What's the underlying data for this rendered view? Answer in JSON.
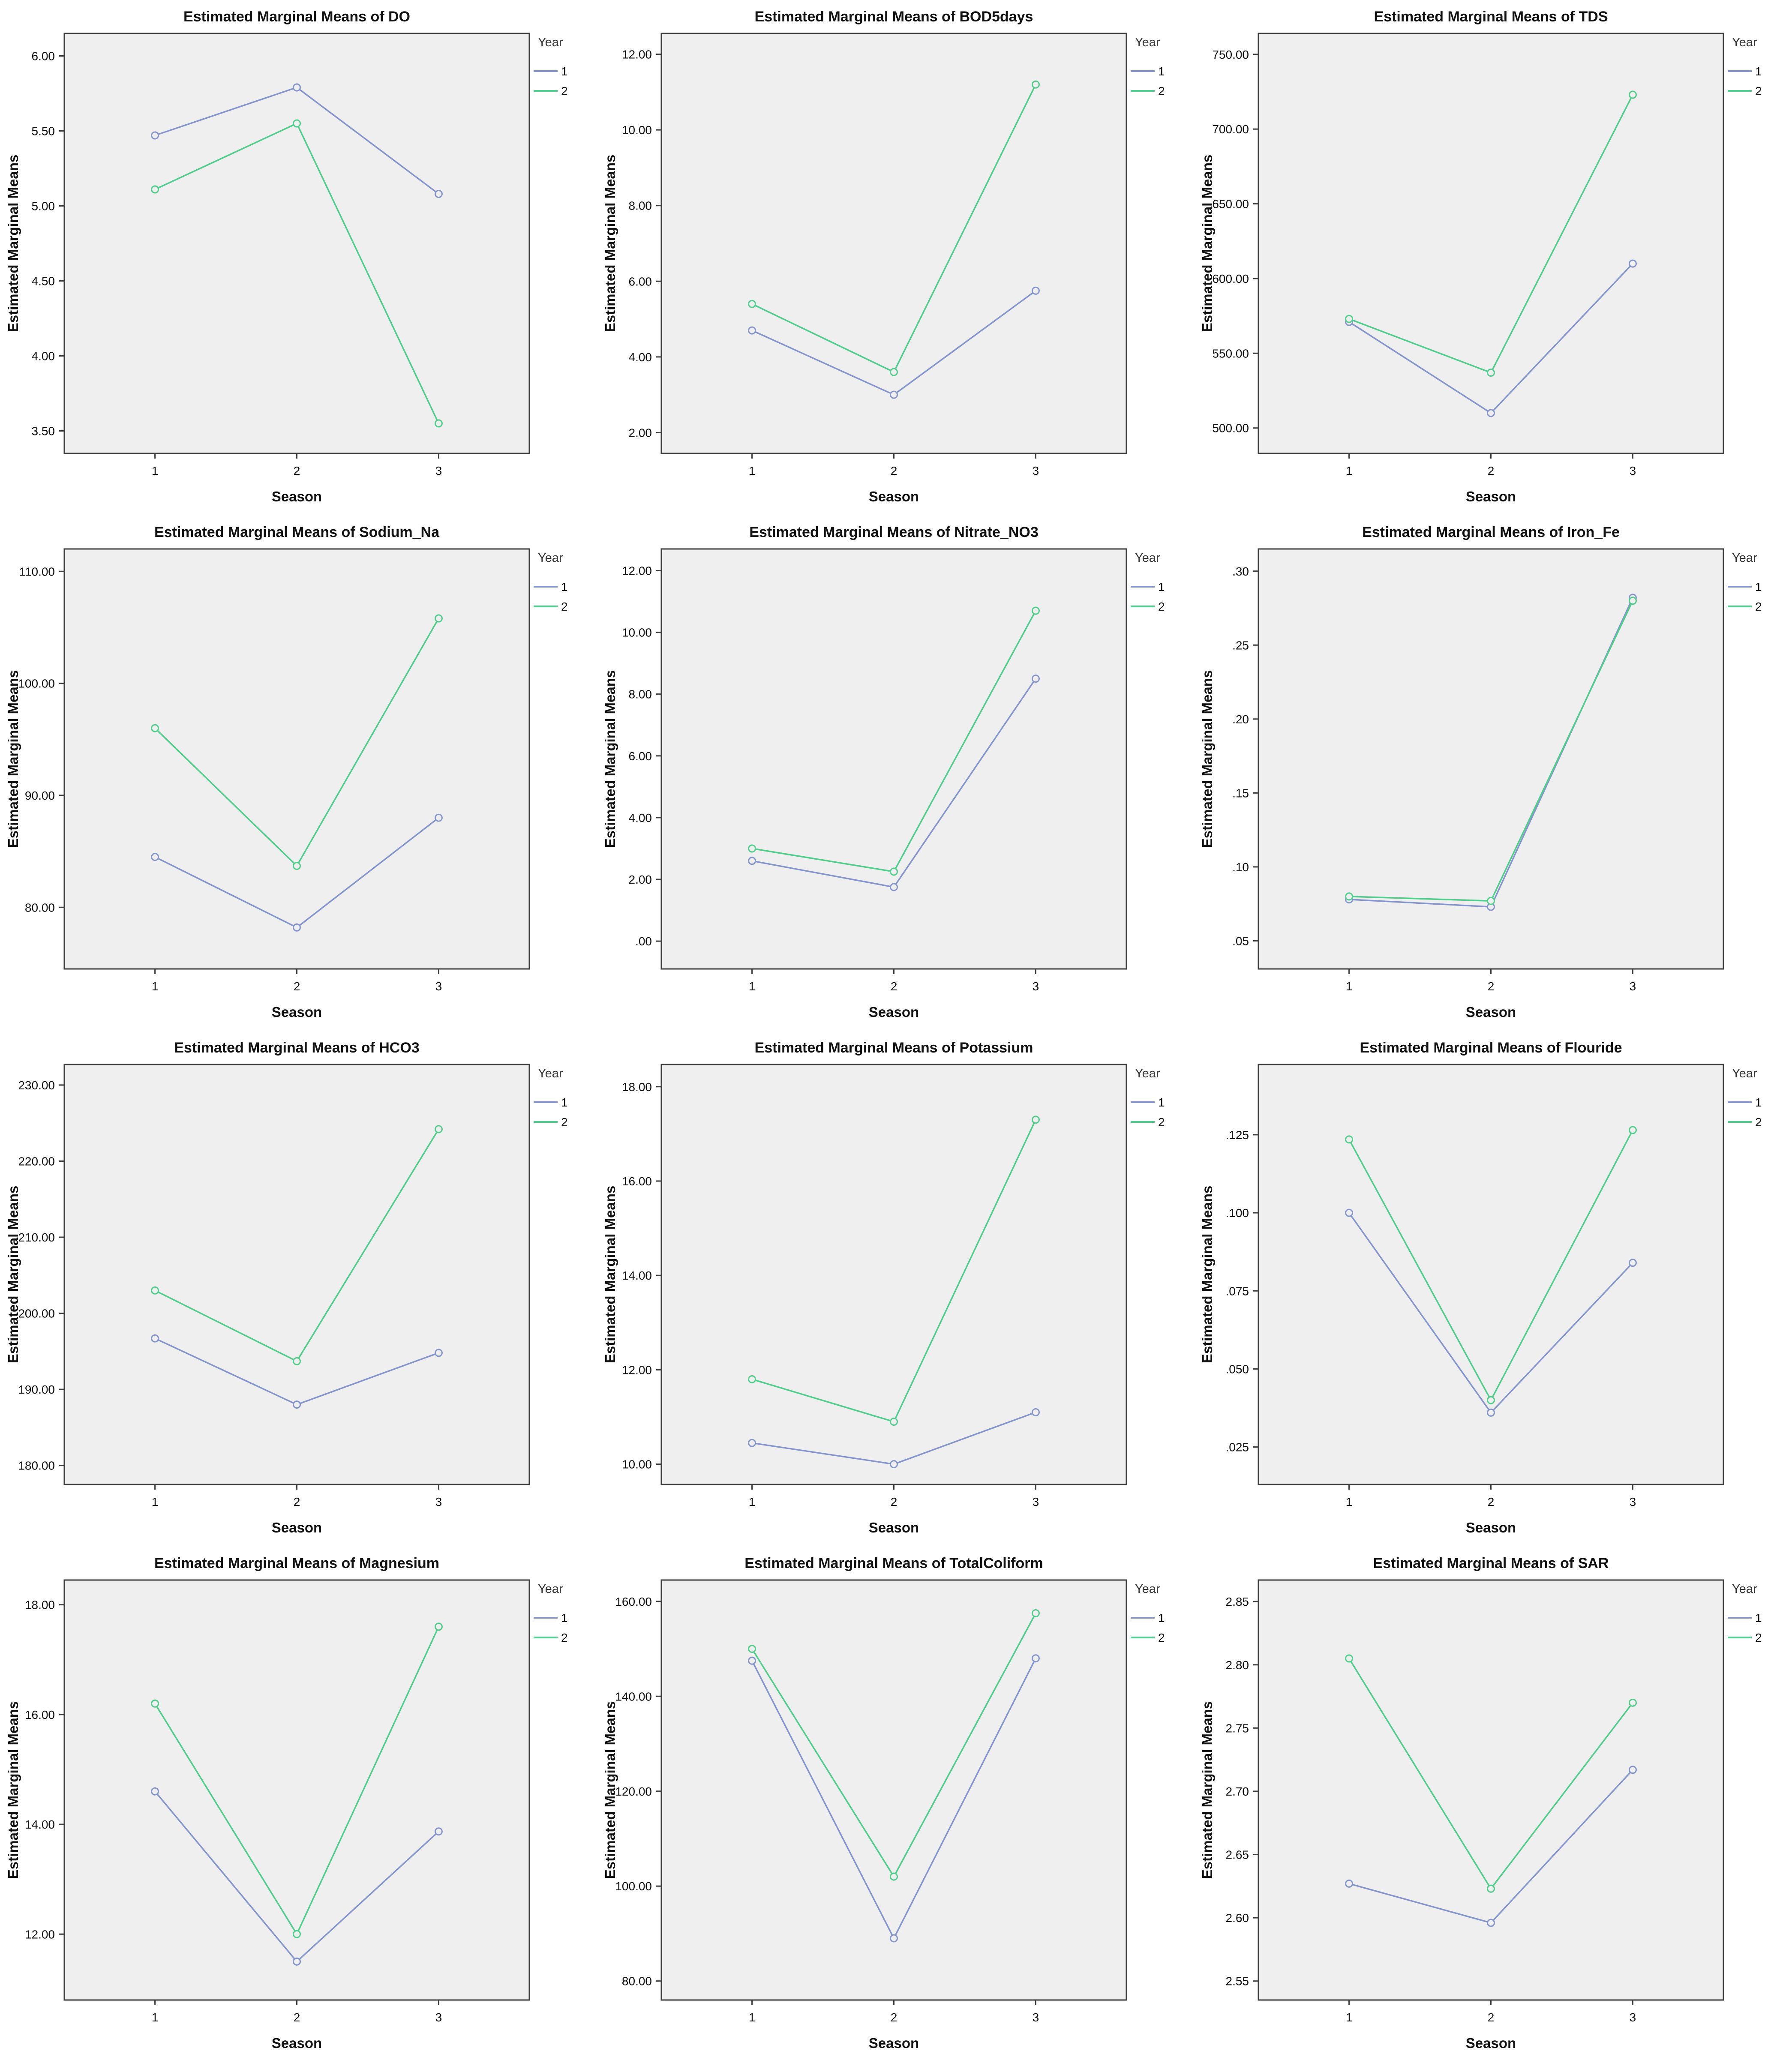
{
  "page": {
    "background": "#ffffff",
    "description_title": "Estimated Marginal Means profile plots grid"
  },
  "layout_colors": {
    "plot_bg": "#efefef",
    "plot_border": "#3f3f3f",
    "tick_color": "#3f3f3f",
    "series1_color": "#8495ce",
    "series2_color": "#4fce8b"
  },
  "shared": {
    "ylabel": "Estimated Marginal Means",
    "xlabel": "Season",
    "legend_title": "Year",
    "categories": [
      "1",
      "2",
      "3"
    ],
    "series_names": [
      "1",
      "2"
    ]
  },
  "chart_data": [
    {
      "type": "line",
      "title": "Estimated Marginal Means of DO",
      "xlabel": "Season",
      "ylabel": "Estimated Marginal Means",
      "legend_title": "Year",
      "categories": [
        "1",
        "2",
        "3"
      ],
      "series": [
        {
          "name": "1",
          "color": "#8495ce",
          "values": [
            5.47,
            5.79,
            5.08
          ]
        },
        {
          "name": "2",
          "color": "#4fce8b",
          "values": [
            5.11,
            5.55,
            3.55
          ]
        }
      ],
      "y_tick_values": [
        6.0,
        5.5,
        5.0,
        4.5,
        4.0,
        3.5
      ],
      "y_tick_labels": [
        "6.00",
        "5.50",
        "5.00",
        "4.50",
        "4.00",
        "3.50"
      ],
      "ylim": [
        3.35,
        6.15
      ],
      "grid": false,
      "legend_position": "right"
    },
    {
      "type": "line",
      "title": "Estimated Marginal Means of BOD5days",
      "xlabel": "Season",
      "ylabel": "Estimated Marginal Means",
      "legend_title": "Year",
      "categories": [
        "1",
        "2",
        "3"
      ],
      "series": [
        {
          "name": "1",
          "color": "#8495ce",
          "values": [
            4.7,
            3.0,
            5.75
          ]
        },
        {
          "name": "2",
          "color": "#4fce8b",
          "values": [
            5.4,
            3.6,
            11.2
          ]
        }
      ],
      "y_tick_values": [
        12,
        10,
        8,
        6,
        4,
        2
      ],
      "y_tick_labels": [
        "12.00",
        "10.00",
        "8.00",
        "6.00",
        "4.00",
        "2.00"
      ],
      "ylim": [
        1.45,
        12.55
      ],
      "grid": false,
      "legend_position": "right"
    },
    {
      "type": "line",
      "title": "Estimated Marginal Means of TDS",
      "xlabel": "Season",
      "ylabel": "Estimated Marginal Means",
      "legend_title": "Year",
      "categories": [
        "1",
        "2",
        "3"
      ],
      "series": [
        {
          "name": "1",
          "color": "#8495ce",
          "values": [
            571,
            510,
            610
          ]
        },
        {
          "name": "2",
          "color": "#4fce8b",
          "values": [
            573,
            537,
            723
          ]
        }
      ],
      "y_tick_values": [
        750,
        700,
        650,
        600,
        550,
        500
      ],
      "y_tick_labels": [
        "750.00",
        "700.00",
        "650.00",
        "600.00",
        "550.00",
        "500.00"
      ],
      "ylim": [
        483,
        764
      ],
      "grid": false,
      "legend_position": "right"
    },
    {
      "type": "line",
      "title": "Estimated Marginal Means of Sodium_Na",
      "xlabel": "Season",
      "ylabel": "Estimated Marginal Means",
      "legend_title": "Year",
      "categories": [
        "1",
        "2",
        "3"
      ],
      "series": [
        {
          "name": "1",
          "color": "#8495ce",
          "values": [
            84.5,
            78.2,
            88.0
          ]
        },
        {
          "name": "2",
          "color": "#4fce8b",
          "values": [
            96.0,
            83.7,
            105.8
          ]
        }
      ],
      "y_tick_values": [
        110,
        100,
        90,
        80
      ],
      "y_tick_labels": [
        "110.00",
        "100.00",
        "90.00",
        "80.00"
      ],
      "ylim": [
        74.5,
        112
      ],
      "grid": false,
      "legend_position": "right"
    },
    {
      "type": "line",
      "title": "Estimated Marginal Means of Nitrate_NO3",
      "xlabel": "Season",
      "ylabel": "Estimated Marginal Means",
      "legend_title": "Year",
      "categories": [
        "1",
        "2",
        "3"
      ],
      "series": [
        {
          "name": "1",
          "color": "#8495ce",
          "values": [
            2.6,
            1.75,
            8.5
          ]
        },
        {
          "name": "2",
          "color": "#4fce8b",
          "values": [
            3.0,
            2.25,
            10.7
          ]
        }
      ],
      "y_tick_values": [
        12,
        10,
        8,
        6,
        4,
        2,
        0
      ],
      "y_tick_labels": [
        "12.00",
        "10.00",
        "8.00",
        "6.00",
        "4.00",
        "2.00",
        ".00"
      ],
      "ylim": [
        -0.9,
        12.7
      ],
      "grid": false,
      "legend_position": "right"
    },
    {
      "type": "line",
      "title": "Estimated Marginal Means of Iron_Fe",
      "xlabel": "Season",
      "ylabel": "Estimated Marginal Means",
      "legend_title": "Year",
      "categories": [
        "1",
        "2",
        "3"
      ],
      "series": [
        {
          "name": "1",
          "color": "#8495ce",
          "values": [
            0.078,
            0.073,
            0.282
          ]
        },
        {
          "name": "2",
          "color": "#4fce8b",
          "values": [
            0.08,
            0.077,
            0.28
          ]
        }
      ],
      "y_tick_values": [
        0.3,
        0.25,
        0.2,
        0.15,
        0.1,
        0.05
      ],
      "y_tick_labels": [
        ".30",
        ".25",
        ".20",
        ".15",
        ".10",
        ".05"
      ],
      "ylim": [
        0.031,
        0.315
      ],
      "grid": false,
      "legend_position": "right"
    },
    {
      "type": "line",
      "title": "Estimated Marginal Means of HCO3",
      "xlabel": "Season",
      "ylabel": "Estimated Marginal Means",
      "legend_title": "Year",
      "categories": [
        "1",
        "2",
        "3"
      ],
      "series": [
        {
          "name": "1",
          "color": "#8495ce",
          "values": [
            196.7,
            188.0,
            194.8
          ]
        },
        {
          "name": "2",
          "color": "#4fce8b",
          "values": [
            203.0,
            193.7,
            224.2
          ]
        }
      ],
      "y_tick_values": [
        230,
        220,
        210,
        200,
        190,
        180
      ],
      "y_tick_labels": [
        "230.00",
        "220.00",
        "210.00",
        "200.00",
        "190.00",
        "180.00"
      ],
      "ylim": [
        177.5,
        232.7
      ],
      "grid": false,
      "legend_position": "right"
    },
    {
      "type": "line",
      "title": "Estimated Marginal Means of Potassium",
      "xlabel": "Season",
      "ylabel": "Estimated Marginal Means",
      "legend_title": "Year",
      "categories": [
        "1",
        "2",
        "3"
      ],
      "series": [
        {
          "name": "1",
          "color": "#8495ce",
          "values": [
            10.45,
            10.0,
            11.1
          ]
        },
        {
          "name": "2",
          "color": "#4fce8b",
          "values": [
            11.8,
            10.9,
            17.3
          ]
        }
      ],
      "y_tick_values": [
        18,
        16,
        14,
        12,
        10
      ],
      "y_tick_labels": [
        "18.00",
        "16.00",
        "14.00",
        "12.00",
        "10.00"
      ],
      "ylim": [
        9.57,
        18.47
      ],
      "grid": false,
      "legend_position": "right"
    },
    {
      "type": "line",
      "title": "Estimated Marginal Means of Flouride",
      "xlabel": "Season",
      "ylabel": "Estimated Marginal Means",
      "legend_title": "Year",
      "categories": [
        "1",
        "2",
        "3"
      ],
      "series": [
        {
          "name": "1",
          "color": "#8495ce",
          "values": [
            0.1,
            0.036,
            0.084
          ]
        },
        {
          "name": "2",
          "color": "#4fce8b",
          "values": [
            0.1235,
            0.04,
            0.1265
          ]
        }
      ],
      "y_tick_values": [
        0.125,
        0.1,
        0.075,
        0.05,
        0.025
      ],
      "y_tick_labels": [
        ".125",
        ".100",
        ".075",
        ".050",
        ".025"
      ],
      "ylim": [
        0.013,
        0.1475
      ],
      "grid": false,
      "legend_position": "right"
    },
    {
      "type": "line",
      "title": "Estimated Marginal Means of Magnesium",
      "xlabel": "Season",
      "ylabel": "Estimated Marginal Means",
      "legend_title": "Year",
      "categories": [
        "1",
        "2",
        "3"
      ],
      "series": [
        {
          "name": "1",
          "color": "#8495ce",
          "values": [
            14.6,
            11.5,
            13.87
          ]
        },
        {
          "name": "2",
          "color": "#4fce8b",
          "values": [
            16.2,
            12.0,
            17.6
          ]
        }
      ],
      "y_tick_values": [
        18,
        16,
        14,
        12
      ],
      "y_tick_labels": [
        "18.00",
        "16.00",
        "14.00",
        "12.00"
      ],
      "ylim": [
        10.8,
        18.45
      ],
      "grid": false,
      "legend_position": "right"
    },
    {
      "type": "line",
      "title": "Estimated Marginal Means of TotalColiform",
      "xlabel": "Season",
      "ylabel": "Estimated Marginal Means",
      "legend_title": "Year",
      "categories": [
        "1",
        "2",
        "3"
      ],
      "series": [
        {
          "name": "1",
          "color": "#8495ce",
          "values": [
            147.5,
            89.0,
            148.0
          ]
        },
        {
          "name": "2",
          "color": "#4fce8b",
          "values": [
            150.0,
            102.0,
            157.5
          ]
        }
      ],
      "y_tick_values": [
        160,
        140,
        120,
        100,
        80
      ],
      "y_tick_labels": [
        "160.00",
        "140.00",
        "120.00",
        "100.00",
        "80.00"
      ],
      "ylim": [
        76,
        164.5
      ],
      "grid": false,
      "legend_position": "right"
    },
    {
      "type": "line",
      "title": "Estimated Marginal Means of SAR",
      "xlabel": "Season",
      "ylabel": "Estimated Marginal Means",
      "legend_title": "Year",
      "categories": [
        "1",
        "2",
        "3"
      ],
      "series": [
        {
          "name": "1",
          "color": "#8495ce",
          "values": [
            2.627,
            2.596,
            2.717
          ]
        },
        {
          "name": "2",
          "color": "#4fce8b",
          "values": [
            2.805,
            2.623,
            2.77
          ]
        }
      ],
      "y_tick_values": [
        2.85,
        2.8,
        2.75,
        2.7,
        2.65,
        2.6,
        2.55
      ],
      "y_tick_labels": [
        "2.85",
        "2.80",
        "2.75",
        "2.70",
        "2.65",
        "2.60",
        "2.55"
      ],
      "ylim": [
        2.535,
        2.867
      ],
      "grid": false,
      "legend_position": "right"
    }
  ]
}
